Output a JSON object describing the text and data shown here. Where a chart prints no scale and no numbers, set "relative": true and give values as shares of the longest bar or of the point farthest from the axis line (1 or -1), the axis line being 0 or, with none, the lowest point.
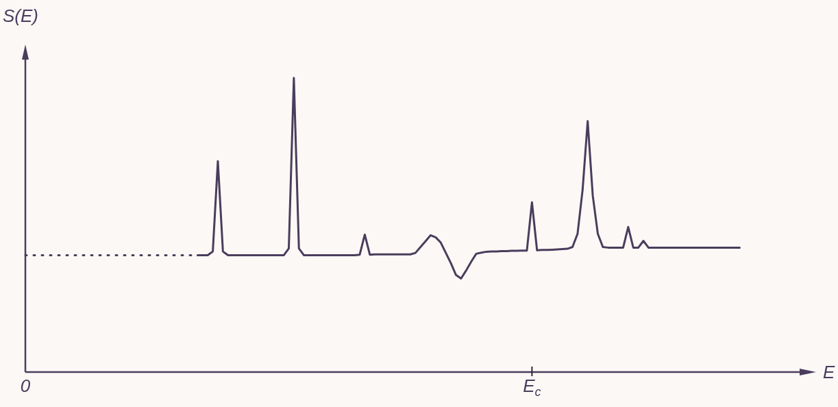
{
  "chart_data": {
    "type": "line",
    "relative": true,
    "xlabel": "E",
    "ylabel": "S(E)",
    "grid": false,
    "legend": false,
    "marker": "none",
    "categories": [
      "0",
      null,
      null,
      null,
      null,
      null,
      null,
      null,
      null,
      null,
      null,
      null,
      null,
      null,
      null,
      null,
      null,
      null,
      null,
      null,
      null,
      null,
      null,
      null,
      null,
      null,
      null,
      null,
      null,
      null,
      null,
      null,
      null,
      null,
      null,
      null,
      null,
      null,
      null,
      null,
      null,
      null,
      null,
      null,
      null,
      null,
      null,
      null,
      null,
      null,
      null,
      null,
      null,
      null,
      null,
      null,
      null,
      null,
      null,
      null,
      null,
      null,
      null,
      null,
      null,
      null,
      null,
      null,
      null,
      null,
      null,
      null,
      null,
      null,
      null,
      null,
      null,
      null,
      null,
      null,
      null,
      null,
      null,
      null,
      null,
      null,
      null,
      null,
      null,
      null,
      null,
      null,
      null,
      null,
      null,
      null,
      null,
      null,
      null,
      null,
      "E$_{c}$",
      null,
      null,
      null,
      null,
      null,
      null,
      null,
      null,
      null,
      null,
      null,
      null,
      null,
      null,
      null,
      null,
      null,
      null,
      null,
      null,
      null,
      null,
      null,
      null,
      null,
      null,
      null,
      null,
      null,
      null,
      null,
      null,
      null,
      null,
      null,
      null,
      null,
      null,
      null,
      null,
      null,
      null,
      null,
      null,
      null,
      null,
      null,
      null,
      null,
      null,
      null,
      null,
      null,
      null,
      null
    ],
    "series": [
      {
        "color": "#4a3d5c",
        "line_style": "dotted",
        "values": [
          0.397,
          0.397,
          0.397,
          0.397,
          0.397,
          0.397,
          0.397,
          0.397,
          0.397,
          0.397,
          0.397,
          0.397,
          0.397,
          0.397,
          0.397,
          0.397,
          0.397,
          0.397,
          0.397,
          0.397,
          0.397,
          0.397,
          0.397,
          0.397,
          0.397,
          0.397,
          0.397,
          0.397,
          0.397,
          0.397,
          0.397,
          0.397,
          0.397,
          0.397,
          null,
          null,
          null,
          null,
          null,
          null,
          null,
          null,
          null,
          null,
          null,
          null,
          null,
          null,
          null,
          null,
          null,
          null,
          null,
          null,
          null,
          null,
          null,
          null,
          null,
          null,
          null,
          null,
          null,
          null,
          null,
          null,
          null,
          null,
          null,
          null,
          null,
          null,
          null,
          null,
          null,
          null,
          null,
          null,
          null,
          null,
          null,
          null,
          null,
          null,
          null,
          null,
          null,
          null,
          null,
          null,
          null,
          null,
          null,
          null,
          null,
          null,
          null,
          null,
          null,
          null,
          null,
          null,
          null,
          null,
          null,
          null,
          null,
          null,
          null,
          null,
          null,
          null,
          null,
          null,
          null,
          null,
          null,
          null,
          null,
          null,
          null,
          null,
          null,
          null,
          null,
          null,
          null,
          null,
          null,
          null,
          null,
          null,
          null,
          null,
          null,
          null,
          null,
          null,
          null,
          null,
          null,
          null,
          null,
          null,
          null,
          null,
          null,
          null,
          null,
          null,
          null,
          null,
          null,
          null,
          null,
          null
        ]
      },
      {
        "color": "#4a3d5c",
        "line_style": "solid",
        "values": [
          null,
          null,
          null,
          null,
          null,
          null,
          null,
          null,
          null,
          null,
          null,
          null,
          null,
          null,
          null,
          null,
          null,
          null,
          null,
          null,
          null,
          null,
          null,
          null,
          null,
          null,
          null,
          null,
          null,
          null,
          null,
          null,
          null,
          null,
          0.397,
          0.397,
          0.397,
          0.41,
          0.717,
          0.41,
          0.397,
          0.397,
          0.397,
          0.397,
          0.397,
          0.397,
          0.397,
          0.397,
          0.397,
          0.397,
          0.397,
          0.397,
          0.42,
          1.0,
          0.42,
          0.397,
          0.397,
          0.397,
          0.397,
          0.397,
          0.397,
          0.397,
          0.397,
          0.397,
          0.397,
          0.397,
          0.399,
          0.467,
          0.399,
          0.4,
          0.4,
          0.4,
          0.4,
          0.4,
          0.4,
          0.4,
          0.4,
          0.405,
          0.425,
          0.445,
          0.465,
          0.458,
          0.44,
          0.405,
          0.37,
          0.33,
          0.318,
          0.345,
          0.375,
          0.402,
          0.406,
          0.409,
          0.41,
          0.41,
          0.411,
          0.411,
          0.412,
          0.412,
          0.413,
          0.413,
          0.577,
          0.414,
          0.415,
          0.415,
          0.416,
          0.417,
          0.418,
          0.419,
          0.425,
          0.47,
          0.62,
          0.853,
          0.6,
          0.47,
          0.425,
          0.423,
          0.423,
          0.423,
          0.423,
          0.493,
          0.423,
          0.423,
          0.446,
          0.423,
          0.423,
          0.423,
          0.423,
          0.423,
          0.423,
          0.423,
          0.423,
          0.423,
          0.423,
          0.423,
          0.423,
          0.423,
          0.423,
          0.423,
          0.423,
          0.423,
          0.423,
          0.423,
          null,
          null,
          null,
          null,
          null,
          null,
          null,
          null,
          null,
          null,
          null,
          null,
          null,
          null
        ]
      }
    ]
  }
}
